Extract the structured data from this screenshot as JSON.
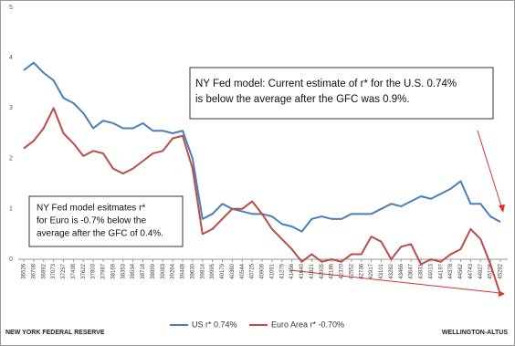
{
  "chart_data": {
    "type": "line",
    "categories": [
      "36526",
      "36708",
      "36892",
      "37073",
      "37257",
      "37438",
      "37622",
      "37803",
      "37987",
      "38169",
      "38353",
      "38534",
      "38718",
      "38899",
      "39083",
      "39264",
      "39448",
      "39630",
      "39814",
      "39995",
      "40179",
      "40360",
      "40544",
      "40725",
      "40909",
      "41091",
      "41275",
      "41456",
      "41640",
      "41821",
      "42005",
      "42186",
      "42370",
      "42552",
      "42736",
      "42917",
      "43101",
      "43282",
      "43466",
      "43647",
      "43831",
      "44013",
      "44197",
      "44378",
      "44562",
      "44743",
      "44927",
      "45108",
      "45292"
    ],
    "series": [
      {
        "name": "US  r* 0.74%",
        "color": "#4a7ebb",
        "values": [
          3.75,
          3.9,
          3.7,
          3.55,
          3.2,
          3.1,
          2.9,
          2.6,
          2.75,
          2.7,
          2.6,
          2.6,
          2.7,
          2.55,
          2.55,
          2.5,
          2.55,
          2.0,
          0.8,
          0.9,
          1.1,
          1.0,
          0.95,
          0.9,
          0.9,
          0.85,
          0.7,
          0.65,
          0.55,
          0.8,
          0.85,
          0.8,
          0.8,
          0.9,
          0.9,
          0.9,
          1.0,
          1.1,
          1.05,
          1.15,
          1.25,
          1.2,
          1.3,
          1.4,
          1.55,
          1.1,
          1.1,
          0.85,
          0.74
        ]
      },
      {
        "name": "Euro Area r* -0.70%",
        "color": "#be4b48",
        "values": [
          2.2,
          2.35,
          2.6,
          3.0,
          2.5,
          2.3,
          2.05,
          2.15,
          2.1,
          1.8,
          1.7,
          1.8,
          1.95,
          2.1,
          2.15,
          2.4,
          2.45,
          1.8,
          0.5,
          0.6,
          0.8,
          1.0,
          1.0,
          1.15,
          0.9,
          0.6,
          0.4,
          0.2,
          -0.05,
          0.1,
          -0.05,
          0.0,
          -0.05,
          0.1,
          0.1,
          0.45,
          0.35,
          0.0,
          0.25,
          0.3,
          -0.1,
          0.0,
          -0.05,
          0.1,
          0.2,
          0.6,
          0.4,
          -0.1,
          -0.7
        ]
      }
    ],
    "ylim": [
      0,
      5
    ],
    "yticks": [
      0,
      1,
      2,
      3,
      4,
      5
    ],
    "annotations": [
      [
        "NY Fed model: Current estimate of r* for the U.S. 0.74%",
        "is below the average after the GFC was 0.9%."
      ],
      [
        "NY Fed model esitmates r*",
        "for Euro is -0.7%  below the",
        "average  after the GFC of 0.4%."
      ]
    ],
    "source": "NEW YORK FEDERAL RESERVE",
    "brand": "WELLINGTON-ALTUS"
  }
}
